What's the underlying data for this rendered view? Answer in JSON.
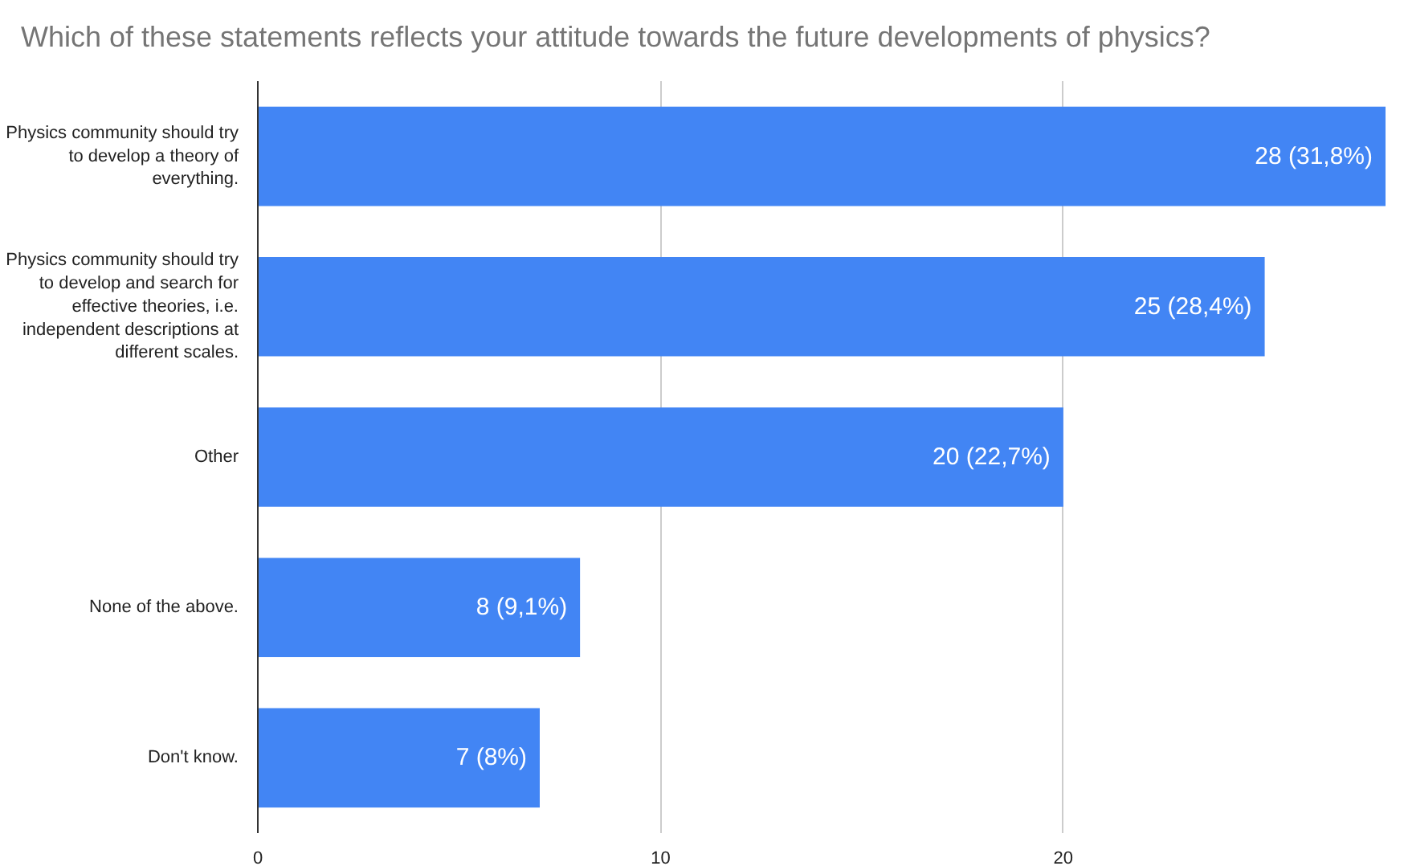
{
  "chart_data": {
    "type": "bar",
    "orientation": "horizontal",
    "title": "Which of these statements reflects your attitude towards the future developments of physics?",
    "categories": [
      "Physics community should try to develop a theory of everything.",
      "Physics community should try to develop and search for effective theories, i.e. independent descriptions at different scales.",
      "Other",
      "None of the above.",
      "Don't know."
    ],
    "values": [
      28,
      25,
      20,
      8,
      7
    ],
    "value_labels": [
      "28 (31,8%)",
      "25 (28,4%)",
      "20 (22,7%)",
      "8 (9,1%)",
      "7 (8%)"
    ],
    "color": "#4285f4",
    "xlim": [
      0,
      28
    ],
    "xticks": [
      0,
      10,
      20
    ],
    "grid": "x"
  }
}
